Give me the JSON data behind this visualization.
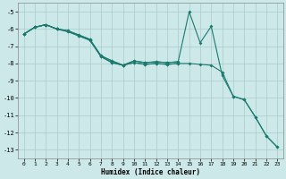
{
  "xlabel": "Humidex (Indice chaleur)",
  "background_color": "#cce8e8",
  "grid_color": "#aacccc",
  "line_color": "#1a7a6e",
  "xlim": [
    -0.5,
    23.5
  ],
  "ylim": [
    -13.5,
    -4.5
  ],
  "yticks": [
    -13,
    -12,
    -11,
    -10,
    -9,
    -8,
    -7,
    -6,
    -5
  ],
  "xticks": [
    0,
    1,
    2,
    3,
    4,
    5,
    6,
    7,
    8,
    9,
    10,
    11,
    12,
    13,
    14,
    15,
    16,
    17,
    18,
    19,
    20,
    21,
    22,
    23
  ],
  "series1_x": [
    0,
    1,
    2,
    3,
    4,
    5,
    6,
    7,
    8,
    9,
    10,
    11,
    12,
    13,
    14,
    15,
    16,
    17,
    18,
    19,
    20,
    21,
    22,
    23
  ],
  "series1_y": [
    -6.3,
    -5.9,
    -5.75,
    -6.0,
    -6.1,
    -6.35,
    -6.6,
    -7.55,
    -7.85,
    -8.1,
    -7.85,
    -7.95,
    -7.9,
    -7.95,
    -7.9,
    -5.0,
    -6.8,
    -5.85,
    -8.7,
    -9.9,
    -10.1,
    -11.1,
    -12.2,
    -12.85
  ],
  "series2_x": [
    0,
    1,
    2,
    3,
    4,
    5,
    6,
    7,
    8,
    9,
    10,
    11,
    12,
    13,
    14,
    15,
    16,
    17,
    18,
    19,
    20,
    21,
    22,
    23
  ],
  "series2_y": [
    -6.3,
    -5.9,
    -5.75,
    -6.0,
    -6.15,
    -6.4,
    -6.65,
    -7.6,
    -7.95,
    -8.1,
    -7.95,
    -8.05,
    -8.0,
    -8.05,
    -8.0,
    -8.0,
    -8.05,
    -8.1,
    -8.5,
    -9.9,
    -10.1,
    -11.1,
    -12.2,
    -12.85
  ],
  "series3_x": [
    0,
    1,
    2,
    3,
    4,
    5,
    6,
    7,
    8,
    9,
    10,
    11,
    12,
    13,
    14
  ],
  "series3_y": [
    -6.3,
    -5.9,
    -5.75,
    -6.0,
    -6.1,
    -6.35,
    -6.6,
    -7.55,
    -7.85,
    -8.1,
    -7.85,
    -7.95,
    -7.9,
    -7.95,
    -7.9
  ],
  "series4_x": [
    0,
    1,
    2,
    3,
    4,
    5,
    6,
    7,
    8,
    9,
    10,
    11,
    12,
    13,
    14
  ],
  "series4_y": [
    -6.3,
    -5.9,
    -5.75,
    -6.0,
    -6.15,
    -6.4,
    -6.65,
    -7.6,
    -7.95,
    -8.1,
    -7.95,
    -8.05,
    -8.0,
    -8.05,
    -8.0
  ]
}
